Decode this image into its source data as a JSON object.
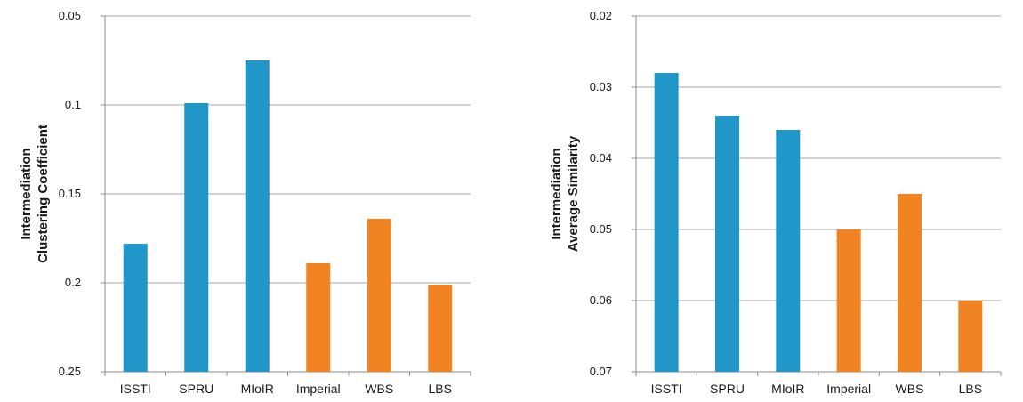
{
  "chart_data": [
    {
      "type": "bar",
      "title": "",
      "xlabel": "",
      "ylabel": [
        "Intermediation",
        "Clustering Coefficient"
      ],
      "categories": [
        "ISSTI",
        "SPRU",
        "MIoIR",
        "Imperial",
        "WBS",
        "LBS"
      ],
      "values": [
        0.178,
        0.099,
        0.075,
        0.189,
        0.164,
        0.201
      ],
      "bar_colors": [
        "#2196c9",
        "#2196c9",
        "#2196c9",
        "#f28322",
        "#f28322",
        "#f28322"
      ],
      "ylim": [
        0.05,
        0.25
      ],
      "inverted": true,
      "yticks": [
        0.05,
        0.1,
        0.15,
        0.2,
        0.25
      ],
      "ytick_labels": [
        "0.05",
        "0.1",
        "0.15",
        "0.2",
        "0.25"
      ],
      "grid": true,
      "legend": "none"
    },
    {
      "type": "bar",
      "title": "",
      "xlabel": "",
      "ylabel": [
        "Intermediation",
        "Average Similarity"
      ],
      "categories": [
        "ISSTI",
        "SPRU",
        "MIoIR",
        "Imperial",
        "WBS",
        "LBS"
      ],
      "values": [
        0.028,
        0.034,
        0.036,
        0.05,
        0.045,
        0.06
      ],
      "bar_colors": [
        "#2196c9",
        "#2196c9",
        "#2196c9",
        "#f28322",
        "#f28322",
        "#f28322"
      ],
      "ylim": [
        0.02,
        0.07
      ],
      "inverted": true,
      "yticks": [
        0.02,
        0.03,
        0.04,
        0.05,
        0.06,
        0.07
      ],
      "ytick_labels": [
        "0.02",
        "0.03",
        "0.04",
        "0.05",
        "0.06",
        "0.07"
      ],
      "grid": true,
      "legend": "none"
    }
  ]
}
